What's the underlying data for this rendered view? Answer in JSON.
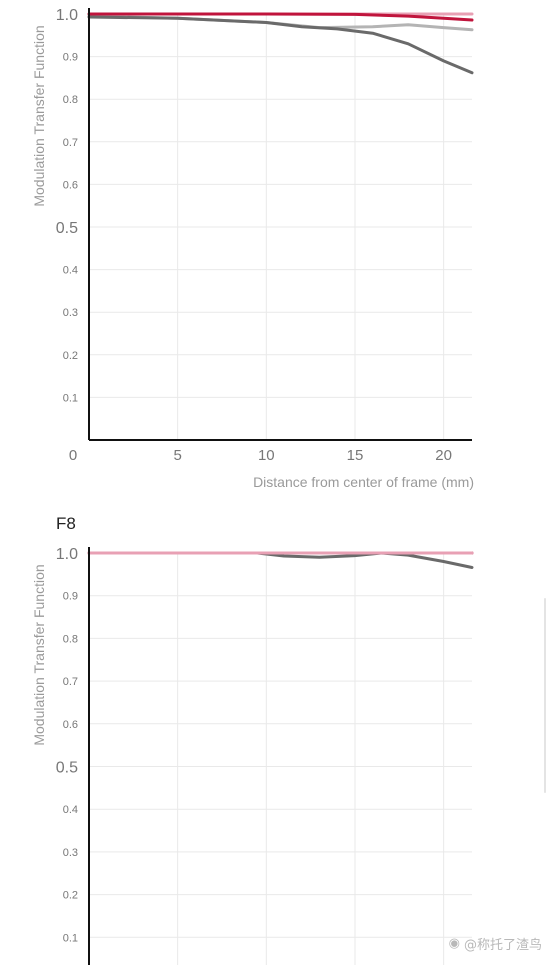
{
  "colors": {
    "red": "#c0143c",
    "pink": "#e8a0b4",
    "dark_gray": "#6a6a6a",
    "light_gray": "#b4b4b4",
    "axis": "#111111",
    "grid": "#e9e9e9"
  },
  "watermark": {
    "text": "@称托了渣鸟",
    "icon": "weibo-icon"
  },
  "chart_data": [
    {
      "type": "line",
      "title": "",
      "ylabel": "Modulation Transfer Function",
      "xlabel": "Distance from center of frame (mm)",
      "xlim": [
        0,
        21.6
      ],
      "ylim": [
        0,
        1.0
      ],
      "xticks": [
        "0",
        "5",
        "10",
        "15",
        "20"
      ],
      "yticks": [
        "0.1",
        "0.2",
        "0.3",
        "0.4",
        "0.5",
        "0.6",
        "0.7",
        "0.8",
        "0.9",
        "1.0"
      ],
      "series": [
        {
          "color": "#b4b4b4",
          "x": [
            0,
            5,
            10,
            13,
            16,
            18,
            20,
            21.6
          ],
          "y": [
            0.995,
            0.99,
            0.98,
            0.968,
            0.97,
            0.975,
            0.968,
            0.963
          ]
        },
        {
          "color": "#6a6a6a",
          "x": [
            0,
            5,
            10,
            12,
            14,
            16,
            18,
            20,
            21.6
          ],
          "y": [
            0.993,
            0.99,
            0.98,
            0.97,
            0.965,
            0.955,
            0.93,
            0.89,
            0.862
          ]
        },
        {
          "color": "#e8a0b4",
          "x": [
            0,
            10,
            21.6
          ],
          "y": [
            1.0,
            1.0,
            1.0
          ]
        },
        {
          "color": "#c0143c",
          "x": [
            0,
            5,
            10,
            15,
            18,
            20,
            21.6
          ],
          "y": [
            1.0,
            1.0,
            1.0,
            0.999,
            0.995,
            0.99,
            0.986
          ]
        }
      ]
    },
    {
      "type": "line",
      "title": "F8",
      "ylabel": "Modulation Transfer Function",
      "xlabel": "",
      "xlim": [
        0,
        21.6
      ],
      "ylim": [
        0,
        1.0
      ],
      "xticks": [],
      "yticks": [
        "0.1",
        "0.2",
        "0.3",
        "0.4",
        "0.5",
        "0.6",
        "0.7",
        "0.8",
        "0.9",
        "1.0"
      ],
      "series": [
        {
          "color": "#b4b4b4",
          "x": [
            0,
            10,
            21.6
          ],
          "y": [
            1.0,
            1.0,
            1.0
          ]
        },
        {
          "color": "#6a6a6a",
          "x": [
            0,
            9.5,
            11,
            13,
            15,
            16.5,
            18,
            20,
            21.6
          ],
          "y": [
            1.0,
            1.0,
            0.993,
            0.99,
            0.994,
            1.0,
            0.995,
            0.98,
            0.966
          ]
        },
        {
          "color": "#c0143c",
          "x": [
            0,
            10,
            21.6
          ],
          "y": [
            1.0,
            1.0,
            1.0
          ]
        },
        {
          "color": "#e8a0b4",
          "x": [
            0,
            10,
            21.6
          ],
          "y": [
            1.0,
            1.0,
            1.0
          ]
        }
      ]
    }
  ]
}
